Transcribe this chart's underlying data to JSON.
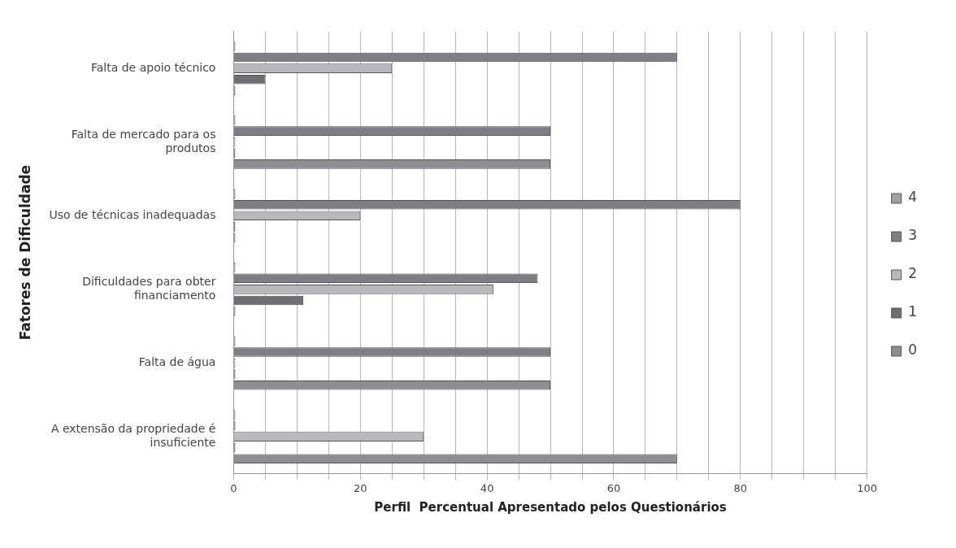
{
  "chart_data": {
    "type": "bar",
    "orientation": "horizontal",
    "ylabel": "Fatores de Dificuldade",
    "xlabel": "Perfil  Percentual Apresentado pelos Questionários",
    "categories": [
      "Falta de apoio técnico",
      "Falta de mercado para os produtos",
      "Uso de técnicas inadequadas",
      "Dificuldades para obter financiamento",
      "Falta de água",
      "A extensão da propriedade é insuficiente"
    ],
    "series": [
      {
        "name": "4",
        "color": "#a0a0a4",
        "values": [
          0,
          0,
          0,
          0,
          0,
          0
        ]
      },
      {
        "name": "3",
        "color": "#7e7e84",
        "values": [
          70,
          50,
          80,
          48,
          50,
          0
        ]
      },
      {
        "name": "2",
        "color": "#b9b9bd",
        "values": [
          25,
          0,
          20,
          41,
          0,
          30
        ]
      },
      {
        "name": "1",
        "color": "#6e6e74",
        "values": [
          5,
          0,
          0,
          11,
          0,
          0
        ]
      },
      {
        "name": "0",
        "color": "#8e8e92",
        "values": [
          0,
          50,
          0,
          0,
          50,
          70
        ]
      }
    ],
    "xlim": [
      0,
      100
    ],
    "xticks": [
      0,
      {
        "value": 5,
        "label": null
      },
      {
        "value": 10,
        "label": null
      },
      {
        "value": 15,
        "label": null
      },
      20,
      {
        "value": 25,
        "label": null
      },
      {
        "value": 30,
        "label": null
      },
      {
        "value": 35,
        "label": null
      },
      40,
      {
        "value": 45,
        "label": null
      },
      {
        "value": 50,
        "label": null
      },
      {
        "value": 55,
        "label": null
      },
      60,
      {
        "value": 65,
        "label": null
      },
      {
        "value": 70,
        "label": null
      },
      {
        "value": 75,
        "label": null
      },
      80,
      {
        "value": 85,
        "label": null
      },
      {
        "value": 90,
        "label": null
      },
      {
        "value": 95,
        "label": null
      },
      100
    ],
    "grid": "x",
    "legend": "right"
  }
}
